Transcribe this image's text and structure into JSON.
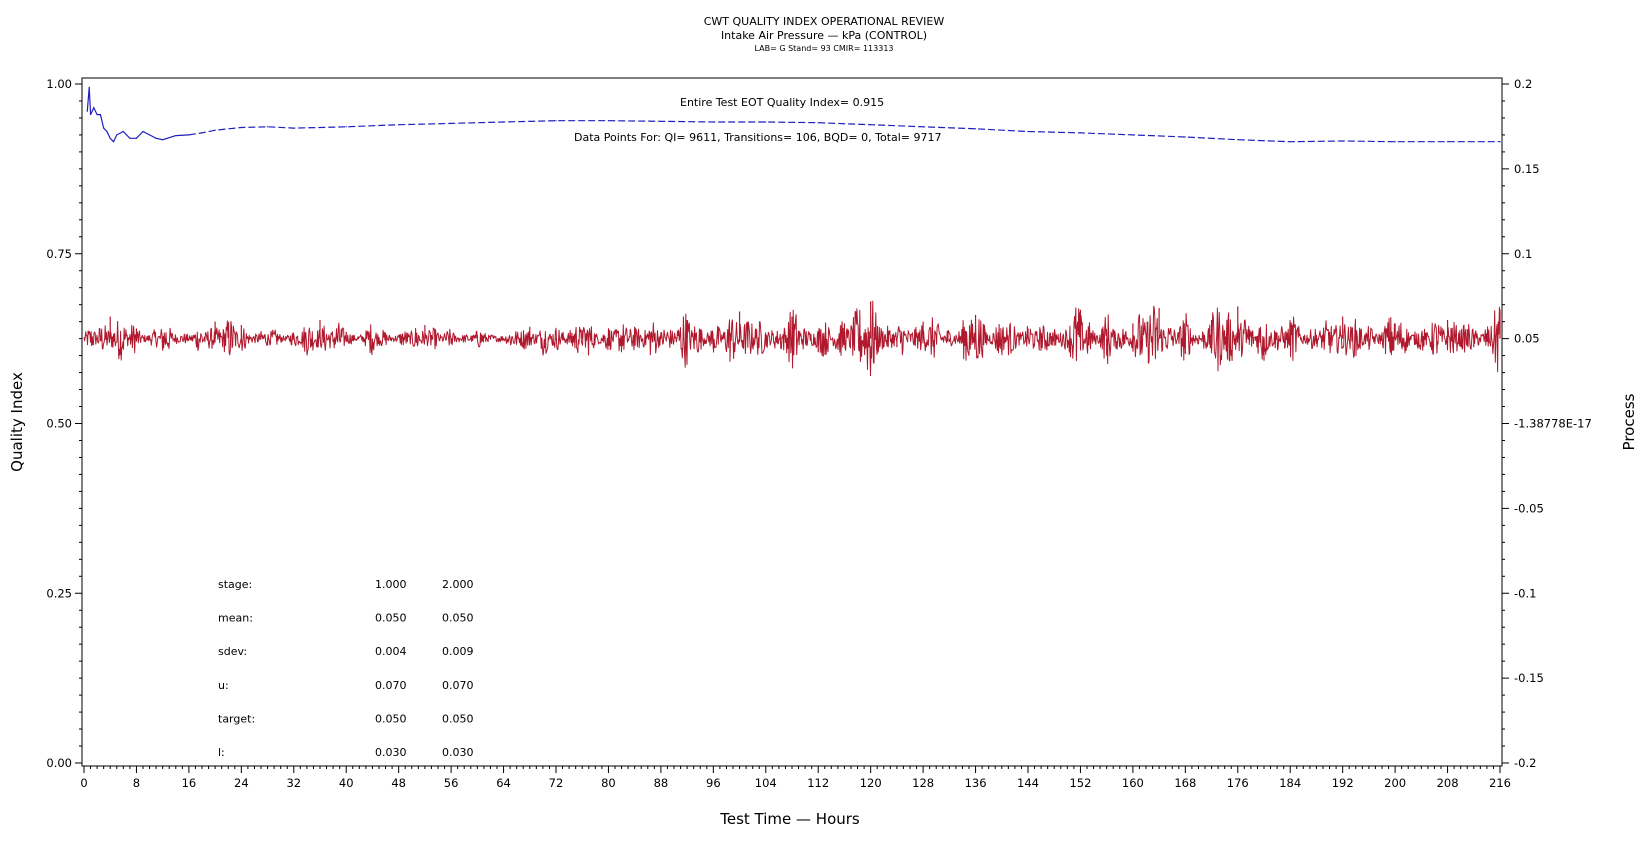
{
  "header": {
    "title": "CWT QUALITY INDEX OPERATIONAL REVIEW",
    "subtitle": "Intake Air Pressure — kPa (CONTROL)",
    "info": "LAB= G Stand= 93 CMIR= 113313"
  },
  "annotations": {
    "eot": "Entire Test EOT Quality Index=   0.915",
    "points": "Data Points For: QI=  9611, Transitions=   106, BQD=     0, Total=  9717"
  },
  "stats": {
    "rows": [
      {
        "label": "stage:",
        "v1": "1.000",
        "v2": "2.000"
      },
      {
        "label": "mean:",
        "v1": "0.050",
        "v2": "0.050"
      },
      {
        "label": "sdev:",
        "v1": "0.004",
        "v2": "0.009"
      },
      {
        "label": "u:",
        "v1": "0.070",
        "v2": "0.070"
      },
      {
        "label": "target:",
        "v1": "0.050",
        "v2": "0.050"
      },
      {
        "label": "l:",
        "v1": "0.030",
        "v2": "0.030"
      }
    ]
  },
  "chart_data": {
    "type": "line",
    "xlabel": "Test Time — Hours",
    "ylabel": "Quality Index",
    "y2label": "Process",
    "xlim": [
      0,
      216
    ],
    "ylim": [
      0,
      1
    ],
    "y2lim": [
      -0.2,
      0.2
    ],
    "x_ticks": [
      "0",
      "8",
      "16",
      "24",
      "32",
      "40",
      "48",
      "56",
      "64",
      "72",
      "80",
      "88",
      "96",
      "104",
      "112",
      "120",
      "128",
      "136",
      "144",
      "152",
      "160",
      "168",
      "176",
      "184",
      "192",
      "200",
      "208",
      "216"
    ],
    "y_ticks": [
      "0.00",
      "0.25",
      "0.50",
      "0.75",
      "1.00"
    ],
    "y2_ticks": [
      "-0.2",
      "-0.15",
      "-0.1",
      "-0.05",
      "-1.38778E-17",
      "0.05",
      "0.1",
      "0.15",
      "0.2"
    ],
    "grid": false,
    "series": [
      {
        "axis": "left",
        "color": "#1f1fbf",
        "style": "solid-then-dashed",
        "x": [
          0.5,
          0.8,
          1.0,
          1.5,
          2.0,
          2.5,
          3.0,
          3.5,
          4.0,
          4.5,
          5,
          6,
          7,
          8,
          9,
          10,
          11,
          12,
          14,
          16,
          18,
          20,
          24,
          28,
          32,
          36,
          40,
          48,
          56,
          64,
          72,
          80,
          88,
          96,
          104,
          112,
          120,
          128,
          136,
          144,
          152,
          160,
          168,
          176,
          184,
          192,
          200,
          208,
          216
        ],
        "values": [
          0.96,
          0.995,
          0.955,
          0.965,
          0.955,
          0.955,
          0.935,
          0.93,
          0.92,
          0.915,
          0.925,
          0.93,
          0.92,
          0.92,
          0.93,
          0.925,
          0.92,
          0.918,
          0.924,
          0.925,
          0.928,
          0.932,
          0.936,
          0.937,
          0.935,
          0.936,
          0.937,
          0.94,
          0.942,
          0.944,
          0.946,
          0.946,
          0.945,
          0.944,
          0.944,
          0.943,
          0.94,
          0.937,
          0.934,
          0.93,
          0.928,
          0.925,
          0.922,
          0.918,
          0.915,
          0.916,
          0.915,
          0.915,
          0.915
        ]
      },
      {
        "axis": "right",
        "color": "#b0182d",
        "style": "solid",
        "mean": 0.05,
        "sdev_by_stage": [
          0.004,
          0.009
        ],
        "u": 0.07,
        "l": 0.03,
        "x": [
          0,
          4,
          8,
          12,
          16,
          20,
          24,
          28,
          32,
          36,
          40,
          44,
          48,
          52,
          56,
          60,
          64,
          68,
          72,
          76,
          80,
          84,
          88,
          92,
          96,
          100,
          104,
          108,
          112,
          116,
          120,
          124,
          128,
          132,
          136,
          140,
          144,
          148,
          152,
          156,
          160,
          164,
          168,
          172,
          176,
          180,
          184,
          188,
          192,
          196,
          200,
          204,
          208,
          212,
          216
        ],
        "values": [
          0.05,
          0.063,
          0.056,
          0.043,
          0.05,
          0.06,
          0.058,
          0.046,
          0.052,
          0.061,
          0.054,
          0.044,
          0.05,
          0.058,
          0.047,
          0.052,
          0.05,
          0.057,
          0.049,
          0.055,
          0.046,
          0.057,
          0.052,
          0.061,
          0.044,
          0.066,
          0.05,
          0.063,
          0.042,
          0.059,
          0.072,
          0.045,
          0.06,
          0.048,
          0.064,
          0.042,
          0.056,
          0.046,
          0.067,
          0.04,
          0.059,
          0.068,
          0.041,
          0.061,
          0.069,
          0.037,
          0.058,
          0.047,
          0.063,
          0.046,
          0.059,
          0.048,
          0.061,
          0.045,
          0.067
        ]
      }
    ]
  }
}
